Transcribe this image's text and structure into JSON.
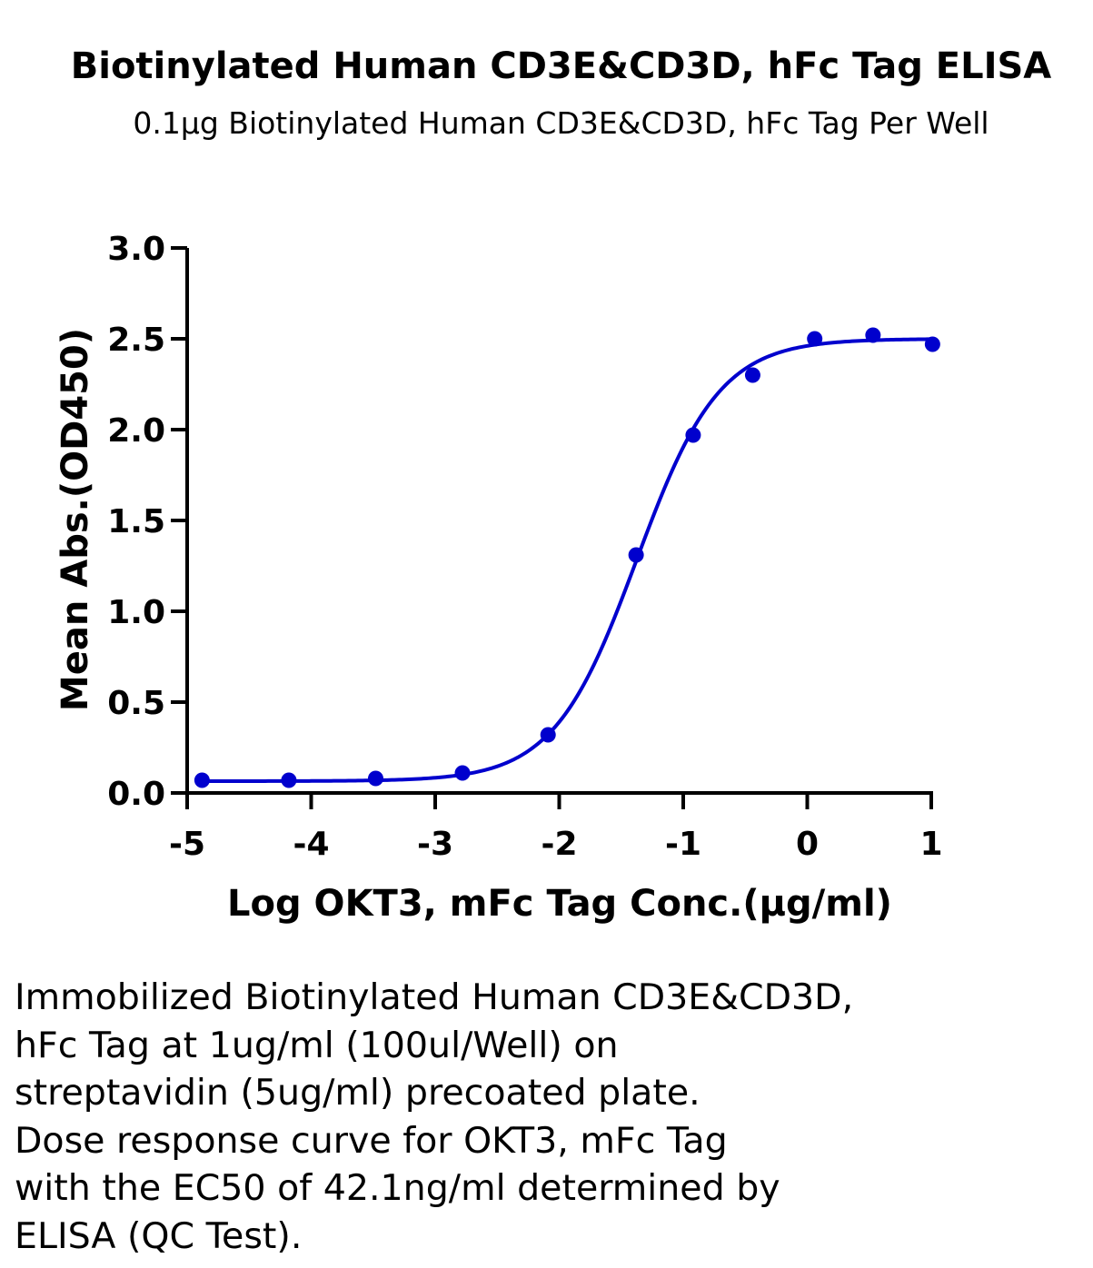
{
  "chart_data": {
    "type": "scatter",
    "title": "Biotinylated Human CD3E&CD3D, hFc Tag ELISA",
    "subtitle": "0.1μg Biotinylated Human CD3E&CD3D, hFc Tag Per Well",
    "xlabel": "Log OKT3, mFc Tag Conc.(μg/ml)",
    "ylabel": "Mean Abs.(OD450)",
    "xlim": [
      -5,
      1
    ],
    "ylim": [
      0,
      3.0
    ],
    "x_ticks": [
      -5,
      -4,
      -3,
      -2,
      -1,
      0,
      1
    ],
    "x_tick_labels": [
      "-5",
      "-4",
      "-3",
      "-2",
      "-1",
      "0",
      "1"
    ],
    "y_ticks": [
      0,
      0.5,
      1.0,
      1.5,
      2.0,
      2.5,
      3.0
    ],
    "y_tick_labels": [
      "0.0",
      "0.5",
      "1.0",
      "1.5",
      "2.0",
      "2.5",
      "3.0"
    ],
    "grid": false,
    "legend": "none",
    "series": [
      {
        "x": [
          -4.88,
          -4.18,
          -3.48,
          -2.78,
          -2.09,
          -1.38,
          -0.92,
          -0.44,
          0.06,
          0.53,
          1.01
        ],
        "y": [
          0.07,
          0.07,
          0.08,
          0.11,
          0.32,
          1.31,
          1.97,
          2.3,
          2.5,
          2.52,
          2.47
        ],
        "color": "#0000CD"
      }
    ],
    "fit_curve": {
      "model": "4PL",
      "bottom": 0.065,
      "top": 2.5,
      "log_ec50": -1.376,
      "hill_slope": 1.3,
      "color": "#0000CD"
    }
  },
  "caption_lines": [
    "Immobilized Biotinylated Human CD3E&CD3D,",
    "hFc Tag at 1ug/ml (100ul/Well) on",
    "streptavidin (5ug/ml) precoated plate.",
    "Dose response curve for OKT3, mFc Tag",
    "with the EC50 of 42.1ng/ml determined by",
    "ELISA (QC Test)."
  ]
}
